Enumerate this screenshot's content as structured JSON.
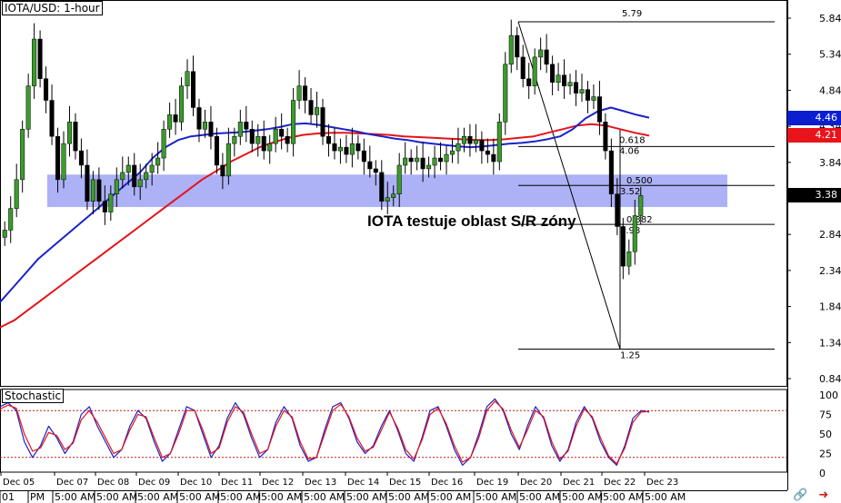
{
  "header": {
    "title": "IOTA/USD: 1-hour"
  },
  "annotation": {
    "text": "IOTA testuje oblast S/R zóny"
  },
  "indicator": {
    "title": "Stochastic"
  },
  "price_badges": [
    {
      "label": "4.46",
      "value": 4.46,
      "color": "#0b1fd1",
      "text_color": "#ffffff"
    },
    {
      "label": "4.21",
      "value": 4.21,
      "color": "#e8141b",
      "text_color": "#ffffff"
    },
    {
      "label": "3.38",
      "value": 3.38,
      "color": "#000000",
      "text_color": "#ffffff"
    }
  ],
  "fib_labels": [
    {
      "label": "5.79",
      "value": 5.79
    },
    {
      "label": "0.618",
      "value": 4.06
    },
    {
      "label": "4.06",
      "value": 4.06
    },
    {
      "label": "0.500",
      "value": 3.52
    },
    {
      "label": "3.52",
      "value": 3.52
    },
    {
      "label": "0.382",
      "value": 2.98
    },
    {
      "label": "2.98",
      "value": 2.98
    },
    {
      "label": "1.25",
      "value": 1.25
    }
  ],
  "icons": [
    "chart-link-icon",
    "arrow-icon"
  ],
  "chart_data": {
    "type": "line",
    "price_axis": {
      "ticks": [
        "5.84",
        "5.34",
        "4.84",
        "4.34",
        "3.84",
        "3.34",
        "2.84",
        "2.34",
        "1.84",
        "1.34",
        "0.84"
      ],
      "tick_values": [
        5.84,
        5.34,
        4.84,
        4.34,
        3.84,
        3.34,
        2.84,
        2.34,
        1.84,
        1.34,
        0.84
      ],
      "ylim": [
        0.64,
        6.04
      ]
    },
    "stoch_axis": {
      "ticks": [
        "100",
        "75",
        "50",
        "25",
        "0"
      ],
      "tick_values": [
        100,
        75,
        50,
        25,
        0
      ],
      "levels": [
        80,
        20
      ]
    },
    "date_labels": [
      "Dec 05",
      "Dec 07",
      "Dec 08",
      "Dec 09",
      "Dec 10",
      "Dec 11",
      "Dec 12",
      "Dec 13",
      "Dec 14",
      "Dec 15",
      "Dec 16",
      "Dec 19",
      "Dec 20",
      "Dec 21",
      "Dec 22",
      "Dec 23"
    ],
    "time_labels": [
      "01",
      "PM",
      "5:00 AM",
      "5:00 AM",
      "5:00 AM",
      "5:00 AM",
      "5:00 AM",
      "5:00 AM",
      "5:00 AM",
      "5:00 AM",
      "5:00 AM",
      "5:00 AM",
      "5:00 AM",
      "5:00 AM",
      "5:00 AM",
      "5:00 AM",
      "5:00 AM"
    ],
    "sr_zone": {
      "top": 3.67,
      "bottom": 3.22,
      "color": "#9fa3f5"
    },
    "fib_levels": [
      5.79,
      4.06,
      3.52,
      2.98,
      1.25
    ],
    "fib_swing": {
      "high": 5.79,
      "low": 1.25
    },
    "series": [
      {
        "name": "",
        "role": "price",
        "color": "#000000",
        "values": [
          2.9,
          3.2,
          3.6,
          4.3,
          4.9,
          5.55,
          5.0,
          4.7,
          4.2,
          3.6,
          4.1,
          4.4,
          4.0,
          3.8,
          3.3,
          3.6,
          3.3,
          3.15,
          3.4,
          3.6,
          3.7,
          3.8,
          3.5,
          3.6,
          3.7,
          3.8,
          3.9,
          4.3,
          4.5,
          4.4,
          4.9,
          5.1,
          4.6,
          4.3,
          4.4,
          4.2,
          3.8,
          3.65,
          4.1,
          4.2,
          4.4,
          4.3,
          4.1,
          4.2,
          4.0,
          4.1,
          4.3,
          4.2,
          4.1,
          4.7,
          4.9,
          4.7,
          4.5,
          4.6,
          4.2,
          4.1,
          4.0,
          4.05,
          3.95,
          4.1,
          4.0,
          3.85,
          3.75,
          3.7,
          3.3,
          3.35,
          3.4,
          3.8,
          3.9,
          3.85,
          3.9,
          3.75,
          3.8,
          3.9,
          3.85,
          3.95,
          4.0,
          4.1,
          4.2,
          4.1,
          4.15,
          4.0,
          3.95,
          3.85,
          4.4,
          5.2,
          5.6,
          5.3,
          5.0,
          4.9,
          5.3,
          5.4,
          5.2,
          4.95,
          5.05,
          4.9,
          4.95,
          4.8,
          4.85,
          4.7,
          4.75,
          4.4,
          4.0,
          3.4,
          2.95,
          2.4,
          2.6,
          3.1,
          3.38
        ]
      },
      {
        "name": "",
        "role": "ma-blue",
        "color": "#1a22c9",
        "values": [
          1.9,
          2.1,
          2.3,
          2.5,
          2.65,
          2.8,
          2.95,
          3.1,
          3.25,
          3.4,
          3.55,
          3.7,
          3.9,
          4.05,
          4.15,
          4.2,
          4.22,
          4.24,
          4.25,
          4.26,
          4.28,
          4.3,
          4.33,
          4.37,
          4.38,
          4.36,
          4.33,
          4.3,
          4.27,
          4.23,
          4.2,
          4.17,
          4.15,
          4.12,
          4.1,
          4.08,
          4.06,
          4.05,
          4.06,
          4.08,
          4.1,
          4.11,
          4.13,
          4.16,
          4.2,
          4.3,
          4.45,
          4.55,
          4.6,
          4.55,
          4.5,
          4.46
        ]
      },
      {
        "name": "",
        "role": "ma-red",
        "color": "#e5131a",
        "values": [
          1.55,
          1.65,
          1.8,
          1.95,
          2.1,
          2.25,
          2.4,
          2.55,
          2.7,
          2.85,
          3.0,
          3.15,
          3.3,
          3.45,
          3.6,
          3.72,
          3.85,
          3.95,
          4.05,
          4.12,
          4.18,
          4.22,
          4.24,
          4.25,
          4.25,
          4.24,
          4.23,
          4.22,
          4.2,
          4.19,
          4.18,
          4.17,
          4.16,
          4.15,
          4.15,
          4.16,
          4.18,
          4.2,
          4.25,
          4.3,
          4.35,
          4.37,
          4.35,
          4.3,
          4.25,
          4.21
        ]
      },
      {
        "name": "",
        "role": "stoch-k",
        "color": "#1a22c9",
        "values": [
          85,
          90,
          80,
          40,
          20,
          35,
          60,
          45,
          25,
          40,
          75,
          85,
          60,
          40,
          20,
          30,
          60,
          80,
          70,
          40,
          15,
          25,
          55,
          85,
          80,
          50,
          20,
          35,
          70,
          90,
          75,
          45,
          20,
          30,
          65,
          85,
          70,
          35,
          15,
          20,
          55,
          85,
          90,
          70,
          40,
          25,
          35,
          60,
          80,
          55,
          25,
          15,
          45,
          80,
          85,
          60,
          30,
          10,
          20,
          50,
          85,
          95,
          80,
          50,
          30,
          60,
          85,
          70,
          35,
          15,
          30,
          65,
          85,
          70,
          40,
          20,
          10,
          35,
          70,
          80,
          78
        ]
      },
      {
        "name": "",
        "role": "stoch-d",
        "color": "#e5131a",
        "values": [
          82,
          87,
          83,
          50,
          28,
          32,
          52,
          48,
          30,
          38,
          68,
          80,
          65,
          45,
          25,
          30,
          55,
          75,
          72,
          45,
          20,
          25,
          50,
          80,
          80,
          55,
          25,
          32,
          65,
          85,
          78,
          50,
          25,
          30,
          60,
          80,
          72,
          40,
          18,
          20,
          50,
          80,
          88,
          72,
          45,
          28,
          33,
          55,
          78,
          58,
          30,
          18,
          42,
          75,
          83,
          63,
          35,
          14,
          20,
          45,
          80,
          92,
          82,
          55,
          33,
          55,
          80,
          72,
          40,
          18,
          28,
          60,
          82,
          72,
          45,
          22,
          12,
          32,
          65,
          78,
          79
        ]
      }
    ]
  }
}
